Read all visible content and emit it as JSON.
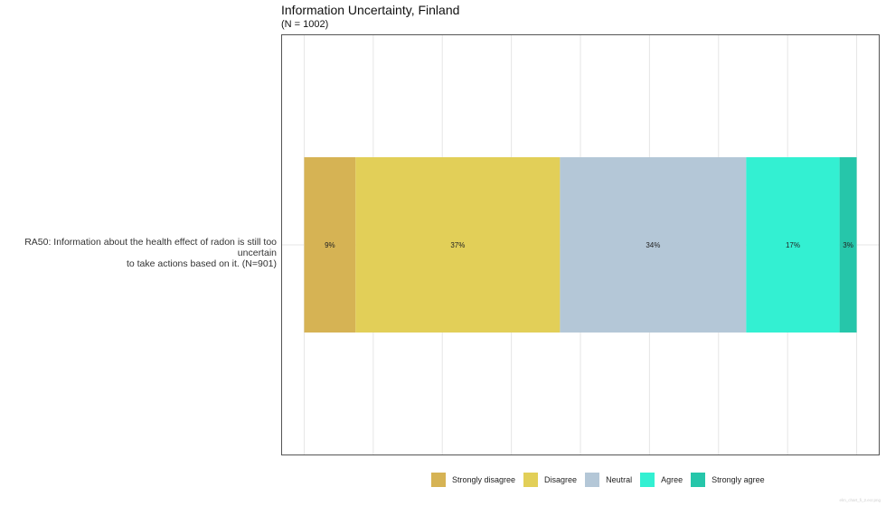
{
  "chart_data": {
    "type": "bar",
    "orientation": "horizontal",
    "stacked": true,
    "title": "Information Uncertainty, Finland",
    "subtitle": "(N = 1002)",
    "categories": [
      "RA50: Information about the health effect of radon is still too uncertain to take actions based on it. (N=901)"
    ],
    "category_label_lines": [
      "RA50: Information about the health effect of radon is still too uncertain",
      "to take actions based on it. (N=901)"
    ],
    "series": [
      {
        "name": "Strongly disagree",
        "values": [
          9.3
        ],
        "label": "9%",
        "color": "#d6b354"
      },
      {
        "name": "Disagree",
        "values": [
          37
        ],
        "label": "37%",
        "color": "#e2cf58"
      },
      {
        "name": "Neutral",
        "values": [
          33.7
        ],
        "label": "34%",
        "color": "#b4c7d7"
      },
      {
        "name": "Agree",
        "values": [
          16.9
        ],
        "label": "17%",
        "color": "#33f0d2"
      },
      {
        "name": "Strongly agree",
        "values": [
          3.1
        ],
        "label": "3%",
        "color": "#26c6aa"
      }
    ],
    "xlim": [
      -4,
      104
    ],
    "grid": true,
    "legend_position": "bottom",
    "watermark": "elm_chart_fi_2.ecr.png"
  }
}
